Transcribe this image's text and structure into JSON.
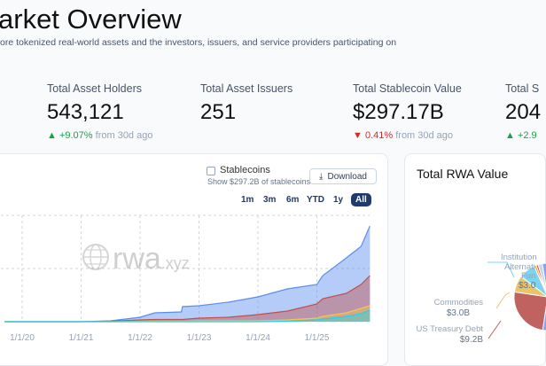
{
  "header": {
    "title": "arket Overview",
    "subtitle": "ore tokenized real-world assets and the investors, issuers, and service providers participating on"
  },
  "stats": [
    {
      "label": "Total Asset Holders",
      "value": "543,121",
      "change": "+9.07%",
      "direction": "up",
      "suffix": "from 30d ago"
    },
    {
      "label": "Total Asset Issuers",
      "value": "251"
    },
    {
      "label": "Total Stablecoin Value",
      "value": "$297.17B",
      "change": "0.41%",
      "direction": "down",
      "suffix": "from 30d ago"
    },
    {
      "label": "Total S",
      "value": "204",
      "change": "+2.9",
      "direction": "up"
    }
  ],
  "chart": {
    "stablecoins_label": "Stablecoins",
    "stablecoins_sub": "Show $297.2B of stablecoins",
    "stablecoins_checked": false,
    "download_label": "Download",
    "ranges": [
      "1m",
      "3m",
      "6m",
      "YTD",
      "1y",
      "All"
    ],
    "active_range": "All",
    "watermark": "rwa.xyz"
  },
  "chart_data": {
    "type": "area",
    "stacked": true,
    "x_ticks": [
      "1/1/20",
      "1/1/21",
      "1/1/22",
      "1/1/23",
      "1/1/24",
      "1/1/25"
    ],
    "grid": true,
    "x": [
      2019.7,
      2021.0,
      2021.5,
      2022.0,
      2022.25,
      2022.7,
      2022.72,
      2023.0,
      2023.5,
      2024.0,
      2024.5,
      2025.0,
      2025.1,
      2025.5,
      2025.75,
      2025.9
    ],
    "ylim": [
      0,
      120
    ],
    "series": [
      {
        "color": "#22d3ee",
        "values": [
          0,
          0,
          0,
          0,
          0,
          0,
          0,
          0,
          0,
          0,
          0.5,
          2,
          3,
          6,
          9,
          13
        ]
      },
      {
        "color": "#f5c451",
        "values": [
          0,
          0,
          0,
          0.5,
          0.5,
          0.5,
          0.5,
          1,
          1,
          1,
          1.5,
          2,
          3,
          4,
          6,
          5
        ]
      },
      {
        "color": "#c0504d",
        "values": [
          0,
          0,
          0.5,
          1.5,
          2,
          2,
          2,
          3,
          4,
          7,
          10,
          16,
          20,
          22,
          27,
          34
        ]
      },
      {
        "color": "#5b8def",
        "values": [
          0,
          0,
          0.5,
          3,
          7.5,
          8.5,
          14.5,
          14,
          17,
          20,
          25,
          22,
          26,
          40,
          43,
          56
        ]
      }
    ]
  },
  "pie": {
    "title": "Total RWA Value",
    "slices": [
      {
        "label": "US Treasury Debt",
        "value": "$9.2B",
        "color": "#c0625f",
        "share": 0.25
      },
      {
        "label": "Commodities",
        "value": "$3.0B",
        "color": "#e8c56a",
        "share": 0.08
      },
      {
        "label_visible": [
          "Institution",
          "Alternati",
          "Fun"
        ],
        "value": "$3.0",
        "color": "#7dd3f0",
        "share": 0.08
      },
      {
        "color": "#f59e0b",
        "share": 0.01
      },
      {
        "color": "#ef4444",
        "share": 0.01
      },
      {
        "color": "#cbd5e1",
        "share": 0.02
      },
      {
        "color": "#7ea6f8",
        "share": 0.55
      }
    ]
  }
}
